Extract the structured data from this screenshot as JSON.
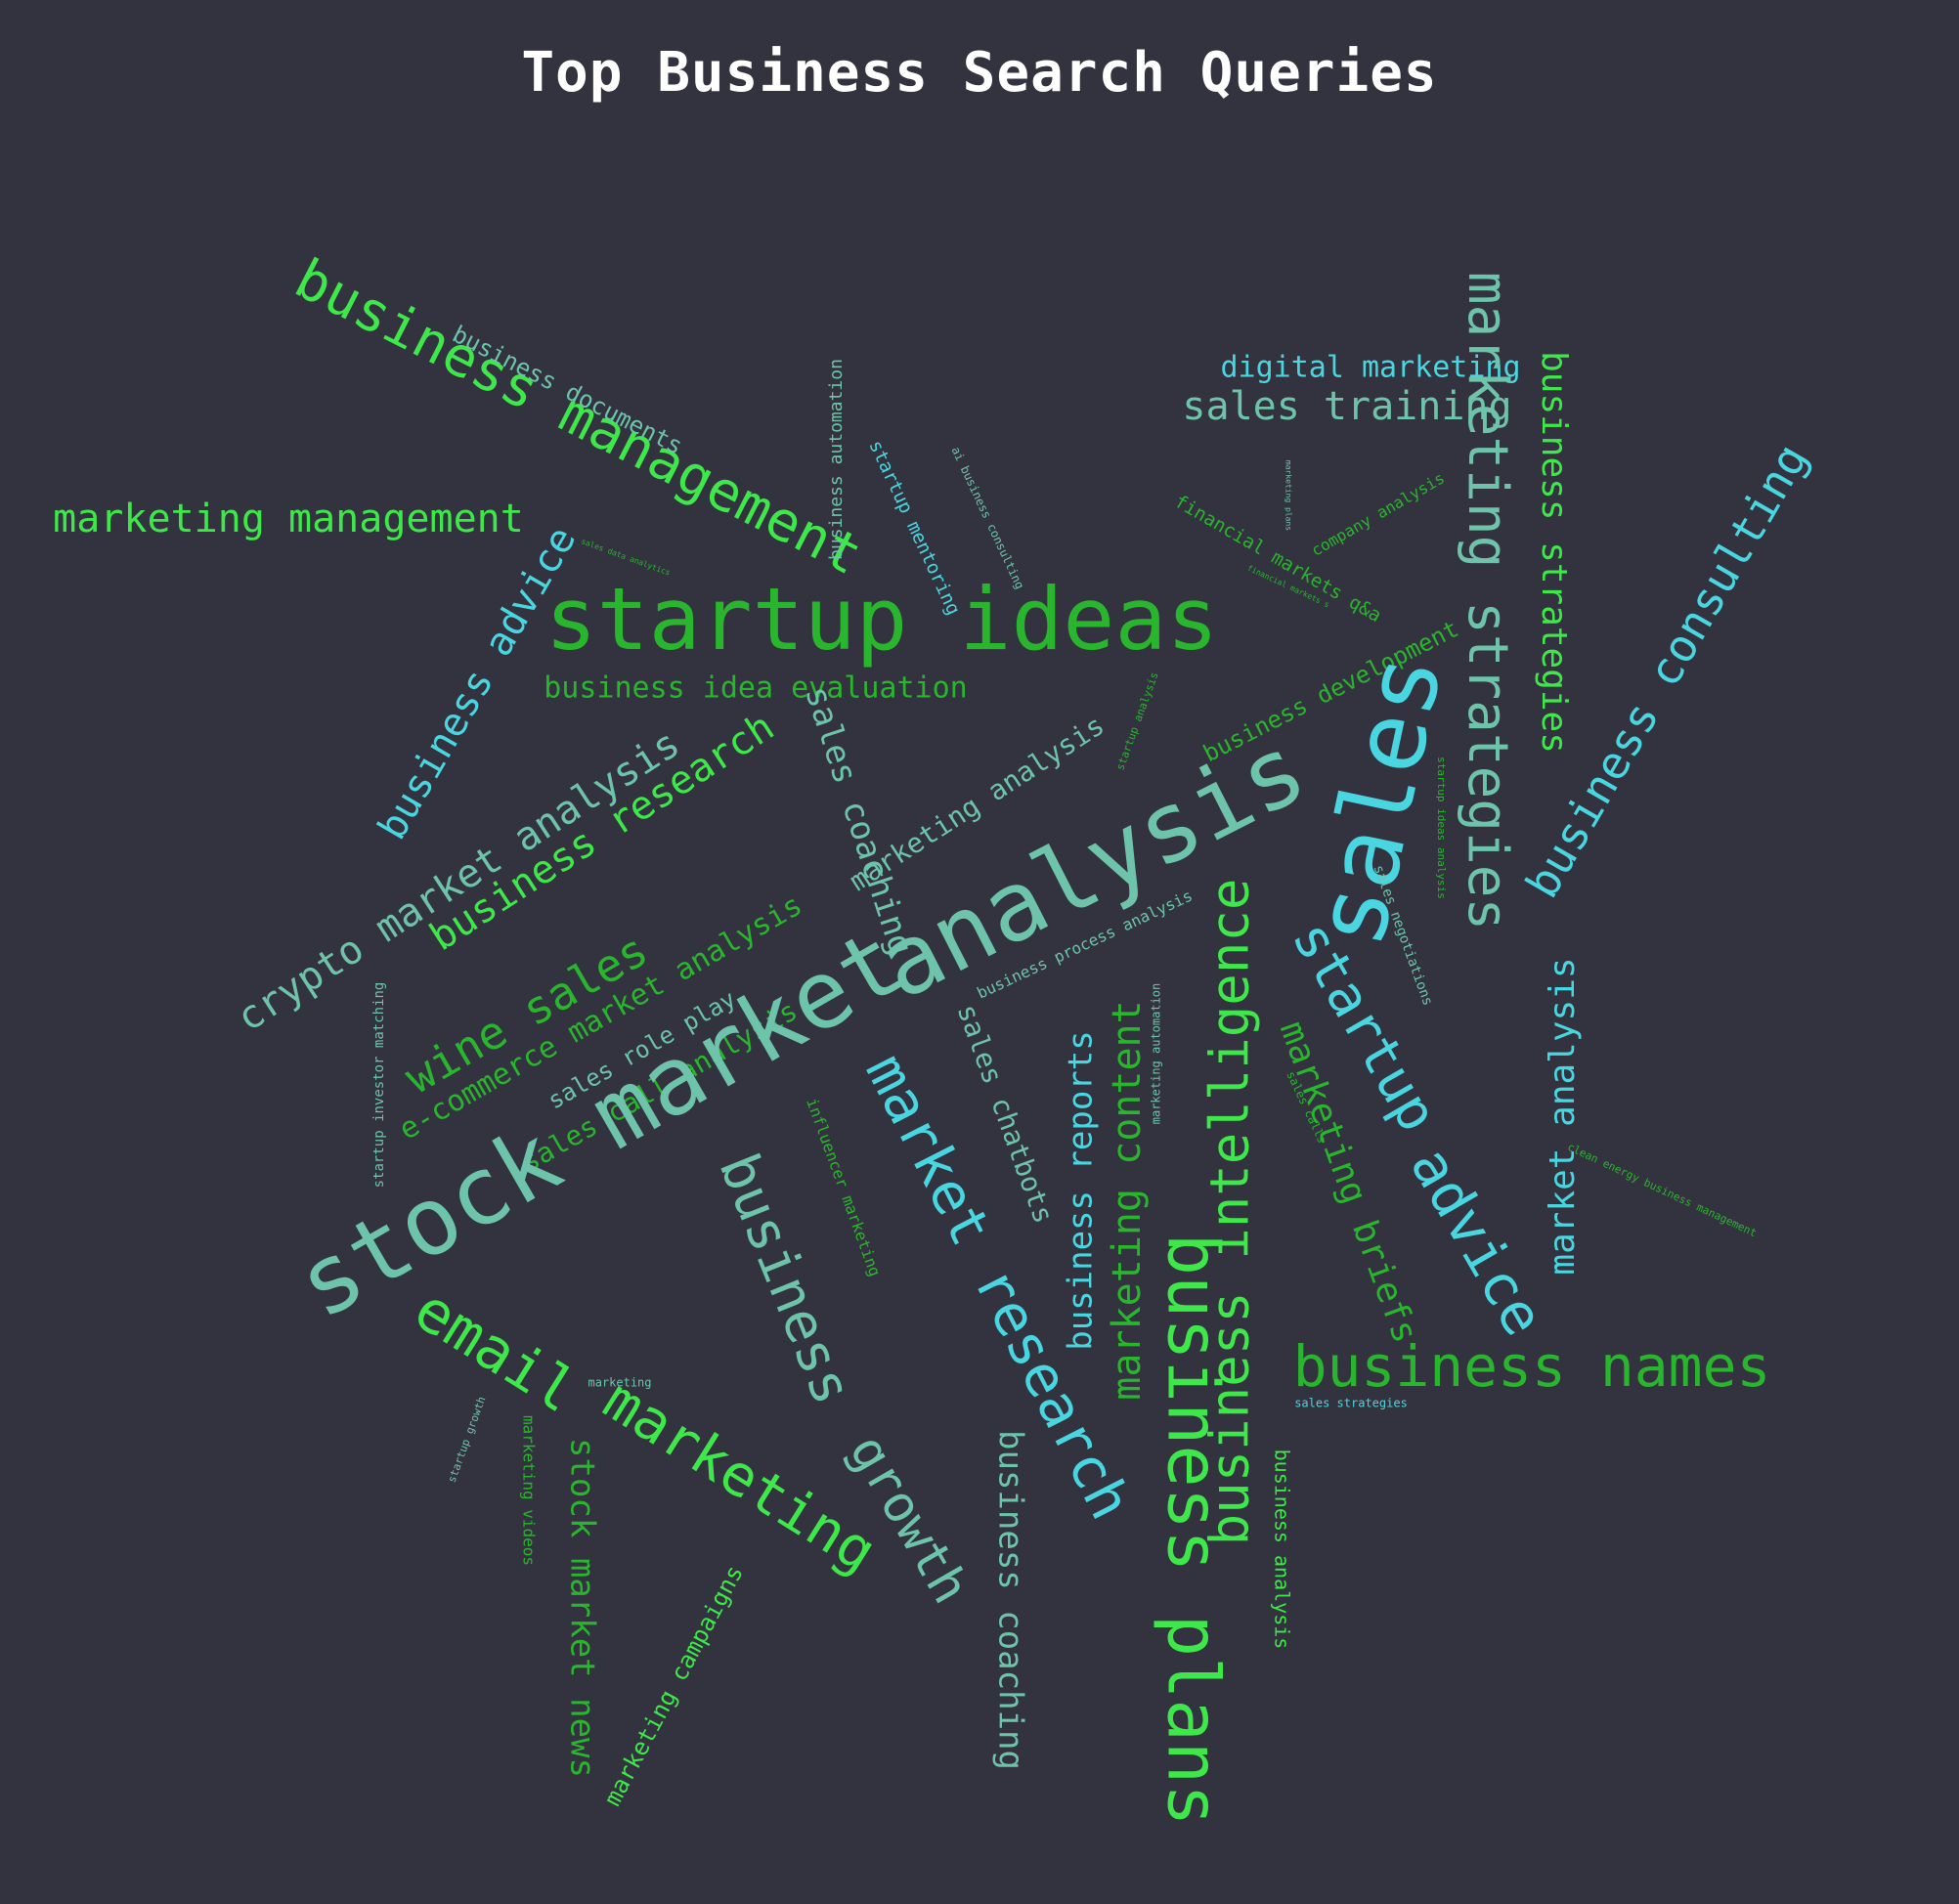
{
  "title": "Top Business Search Queries",
  "palette": {
    "background": "#33333f",
    "title": "#ffffff",
    "bright_green": "#3fe84a",
    "mid_green": "#2ab52e",
    "aqua": "#4ad6e0",
    "teal": "#6ec4aa"
  },
  "words": [
    "business management",
    "business documents",
    "marketing management",
    "business advice",
    "sales data analytics",
    "business automation",
    "startup mentoring",
    "ai business consulting",
    "startup ideas",
    "business idea evaluation",
    "digital marketing",
    "sales training",
    "marketing plans",
    "financial markets q&a",
    "financial markets s",
    "company analysis",
    "business development",
    "marketing strategies",
    "business strategies",
    "business consulting",
    "startup analysis",
    "crypto market analysis",
    "business research",
    "sales coaching",
    "marketing analysis",
    "analysis",
    "sales",
    "startup ideas analysis",
    "sales negotiations",
    "wine sales",
    "e-commerce market analysis",
    "sales role play",
    "sales call analysis",
    "startup investor matching",
    "business process analysis",
    "stock market",
    "market research",
    "sales chatbots",
    "influencer marketing",
    "business",
    "business reports",
    "marketing content",
    "marketing automation",
    "business intelligence",
    "business plans",
    "startup",
    "advice",
    "sales calls",
    "marketing briefs",
    "market analysis",
    "clean energy business management",
    "email",
    "marketing",
    "marketing",
    "growth",
    "business names",
    "sales strategies",
    "startup growth",
    "marketing videos",
    "stock market news",
    "marketing campaigns",
    "business coaching",
    "business analysis"
  ]
}
